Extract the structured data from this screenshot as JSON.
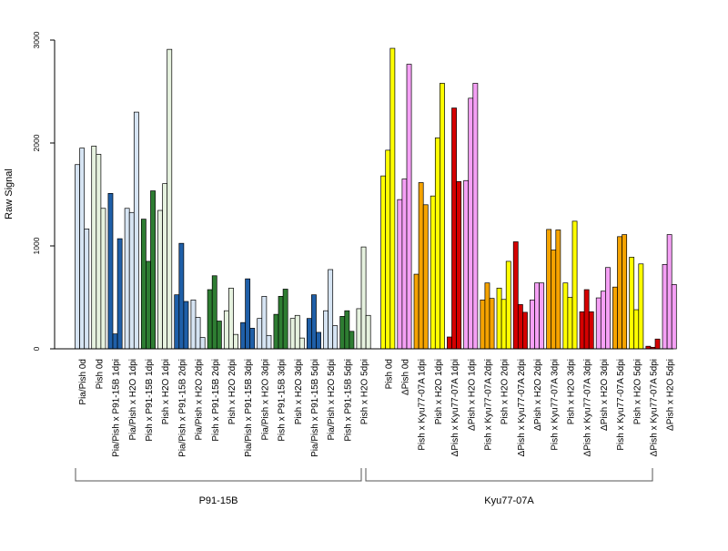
{
  "chart_data": {
    "type": "bar",
    "ylabel": "Raw Signal",
    "xlabel": "",
    "ylim": [
      0,
      3000
    ],
    "yticks": [
      0,
      1000,
      2000,
      3000
    ],
    "bars_per_group": 3,
    "groups": [
      {
        "label": "Pia/Pish 0d",
        "color": "#d6e4f3",
        "values": [
          1790,
          1950,
          1165
        ]
      },
      {
        "label": "Pish 0d",
        "color": "#e6f2df",
        "values": [
          1970,
          1890,
          1365
        ]
      },
      {
        "label": "Pia/Pish x P91-15B 1dpi",
        "color": "#1f5fa8",
        "values": [
          1510,
          145,
          1070
        ]
      },
      {
        "label": "Pia/Pish x H2O 1dpi",
        "color": "#d6e4f3",
        "values": [
          1365,
          1325,
          2300
        ]
      },
      {
        "label": "Pish x P91-15B 1dpi",
        "color": "#2e7d32",
        "values": [
          1260,
          850,
          1535
        ]
      },
      {
        "label": "Pish x H2O 1dpi",
        "color": "#e6f2df",
        "values": [
          1345,
          1605,
          2910
        ]
      },
      {
        "label": "Pia/Pish x P91-15B 2dpi",
        "color": "#1f5fa8",
        "values": [
          525,
          1025,
          460
        ]
      },
      {
        "label": "Pia/Pish x H2O 2dpi",
        "color": "#d6e4f3",
        "values": [
          475,
          305,
          110
        ]
      },
      {
        "label": "Pish x P91-15B 2dpi",
        "color": "#2e7d32",
        "values": [
          575,
          710,
          270
        ]
      },
      {
        "label": "Pish x H2O 2dpi",
        "color": "#e6f2df",
        "values": [
          370,
          590,
          140
        ]
      },
      {
        "label": "Pia/Pish x P91-15B 3dpi",
        "color": "#1f5fa8",
        "values": [
          255,
          680,
          200
        ]
      },
      {
        "label": "Pia/Pish x H2O 3dpi",
        "color": "#d6e4f3",
        "values": [
          295,
          510,
          130
        ]
      },
      {
        "label": "Pish x P91-15B 3dpi",
        "color": "#2e7d32",
        "values": [
          335,
          510,
          580
        ]
      },
      {
        "label": "Pish x H2O 3dpi",
        "color": "#e6f2df",
        "values": [
          295,
          325,
          105
        ]
      },
      {
        "label": "Pia/Pish x P91-15B 5dpi",
        "color": "#1f5fa8",
        "values": [
          295,
          525,
          160
        ]
      },
      {
        "label": "Pia/Pish x H2O 5dpi",
        "color": "#d6e4f3",
        "values": [
          370,
          770,
          225
        ]
      },
      {
        "label": "Pish x P91-15B 5dpi",
        "color": "#2e7d32",
        "values": [
          315,
          370,
          170
        ]
      },
      {
        "label": "Pish x H2O 5dpi",
        "color": "#e6f2df",
        "values": [
          390,
          990,
          325
        ]
      },
      {
        "label": "Pish 0d",
        "color": "#ffff00",
        "values": [
          1680,
          1930,
          2920
        ]
      },
      {
        "label": "ΔPish 0d",
        "color": "#f5a0f5",
        "values": [
          1450,
          1650,
          2765
        ]
      },
      {
        "label": "Pish x Kyu77-07A 1dpi",
        "color": "#f5a300",
        "values": [
          725,
          1615,
          1400
        ]
      },
      {
        "label": "Pish x H2O 1dpi",
        "color": "#ffff00",
        "values": [
          1485,
          2050,
          2580
        ]
      },
      {
        "label": "ΔPish x Kyu77-07A 1dpi",
        "color": "#d50000",
        "values": [
          115,
          2340,
          1625
        ]
      },
      {
        "label": "ΔPish x H2O 1dpi",
        "color": "#f5a0f5",
        "values": [
          1635,
          2435,
          2580
        ]
      },
      {
        "label": "Pish x Kyu77-07A 2dpi",
        "color": "#f5a300",
        "values": [
          475,
          640,
          490
        ]
      },
      {
        "label": "Pish x H2O 2dpi",
        "color": "#ffff00",
        "values": [
          590,
          480,
          850
        ]
      },
      {
        "label": "ΔPish x Kyu77-07A 2dpi",
        "color": "#d50000",
        "values": [
          1040,
          430,
          355
        ]
      },
      {
        "label": "ΔPish x H2O 2dpi",
        "color": "#f5a0f5",
        "values": [
          475,
          640,
          640
        ]
      },
      {
        "label": "Pish x Kyu77-07A 3dpi",
        "color": "#f5a300",
        "values": [
          1160,
          960,
          1155
        ]
      },
      {
        "label": "Pish x H2O 3dpi",
        "color": "#ffff00",
        "values": [
          640,
          500,
          1240
        ]
      },
      {
        "label": "ΔPish x Kyu77-07A 3dpi",
        "color": "#d50000",
        "values": [
          360,
          575,
          360
        ]
      },
      {
        "label": "ΔPish x H2O 3dpi",
        "color": "#f5a0f5",
        "values": [
          495,
          560,
          790
        ]
      },
      {
        "label": "Pish x Kyu77-07A 5dpi",
        "color": "#f5a300",
        "values": [
          600,
          1090,
          1110
        ]
      },
      {
        "label": "Pish x H2O 5dpi",
        "color": "#ffff00",
        "values": [
          890,
          380,
          825
        ]
      },
      {
        "label": "ΔPish x Kyu77-07A 5dpi",
        "color": "#d50000",
        "values": [
          25,
          15,
          95
        ]
      },
      {
        "label": "ΔPish x H2O 5dpi",
        "color": "#f5a0f5",
        "values": [
          820,
          1110,
          625
        ]
      }
    ],
    "brackets": [
      {
        "label": "P91-15B",
        "from_group": 0,
        "to_group": 17
      },
      {
        "label": "Kyu77-07A",
        "from_group": 18,
        "to_group": 35
      }
    ],
    "grid": false
  }
}
